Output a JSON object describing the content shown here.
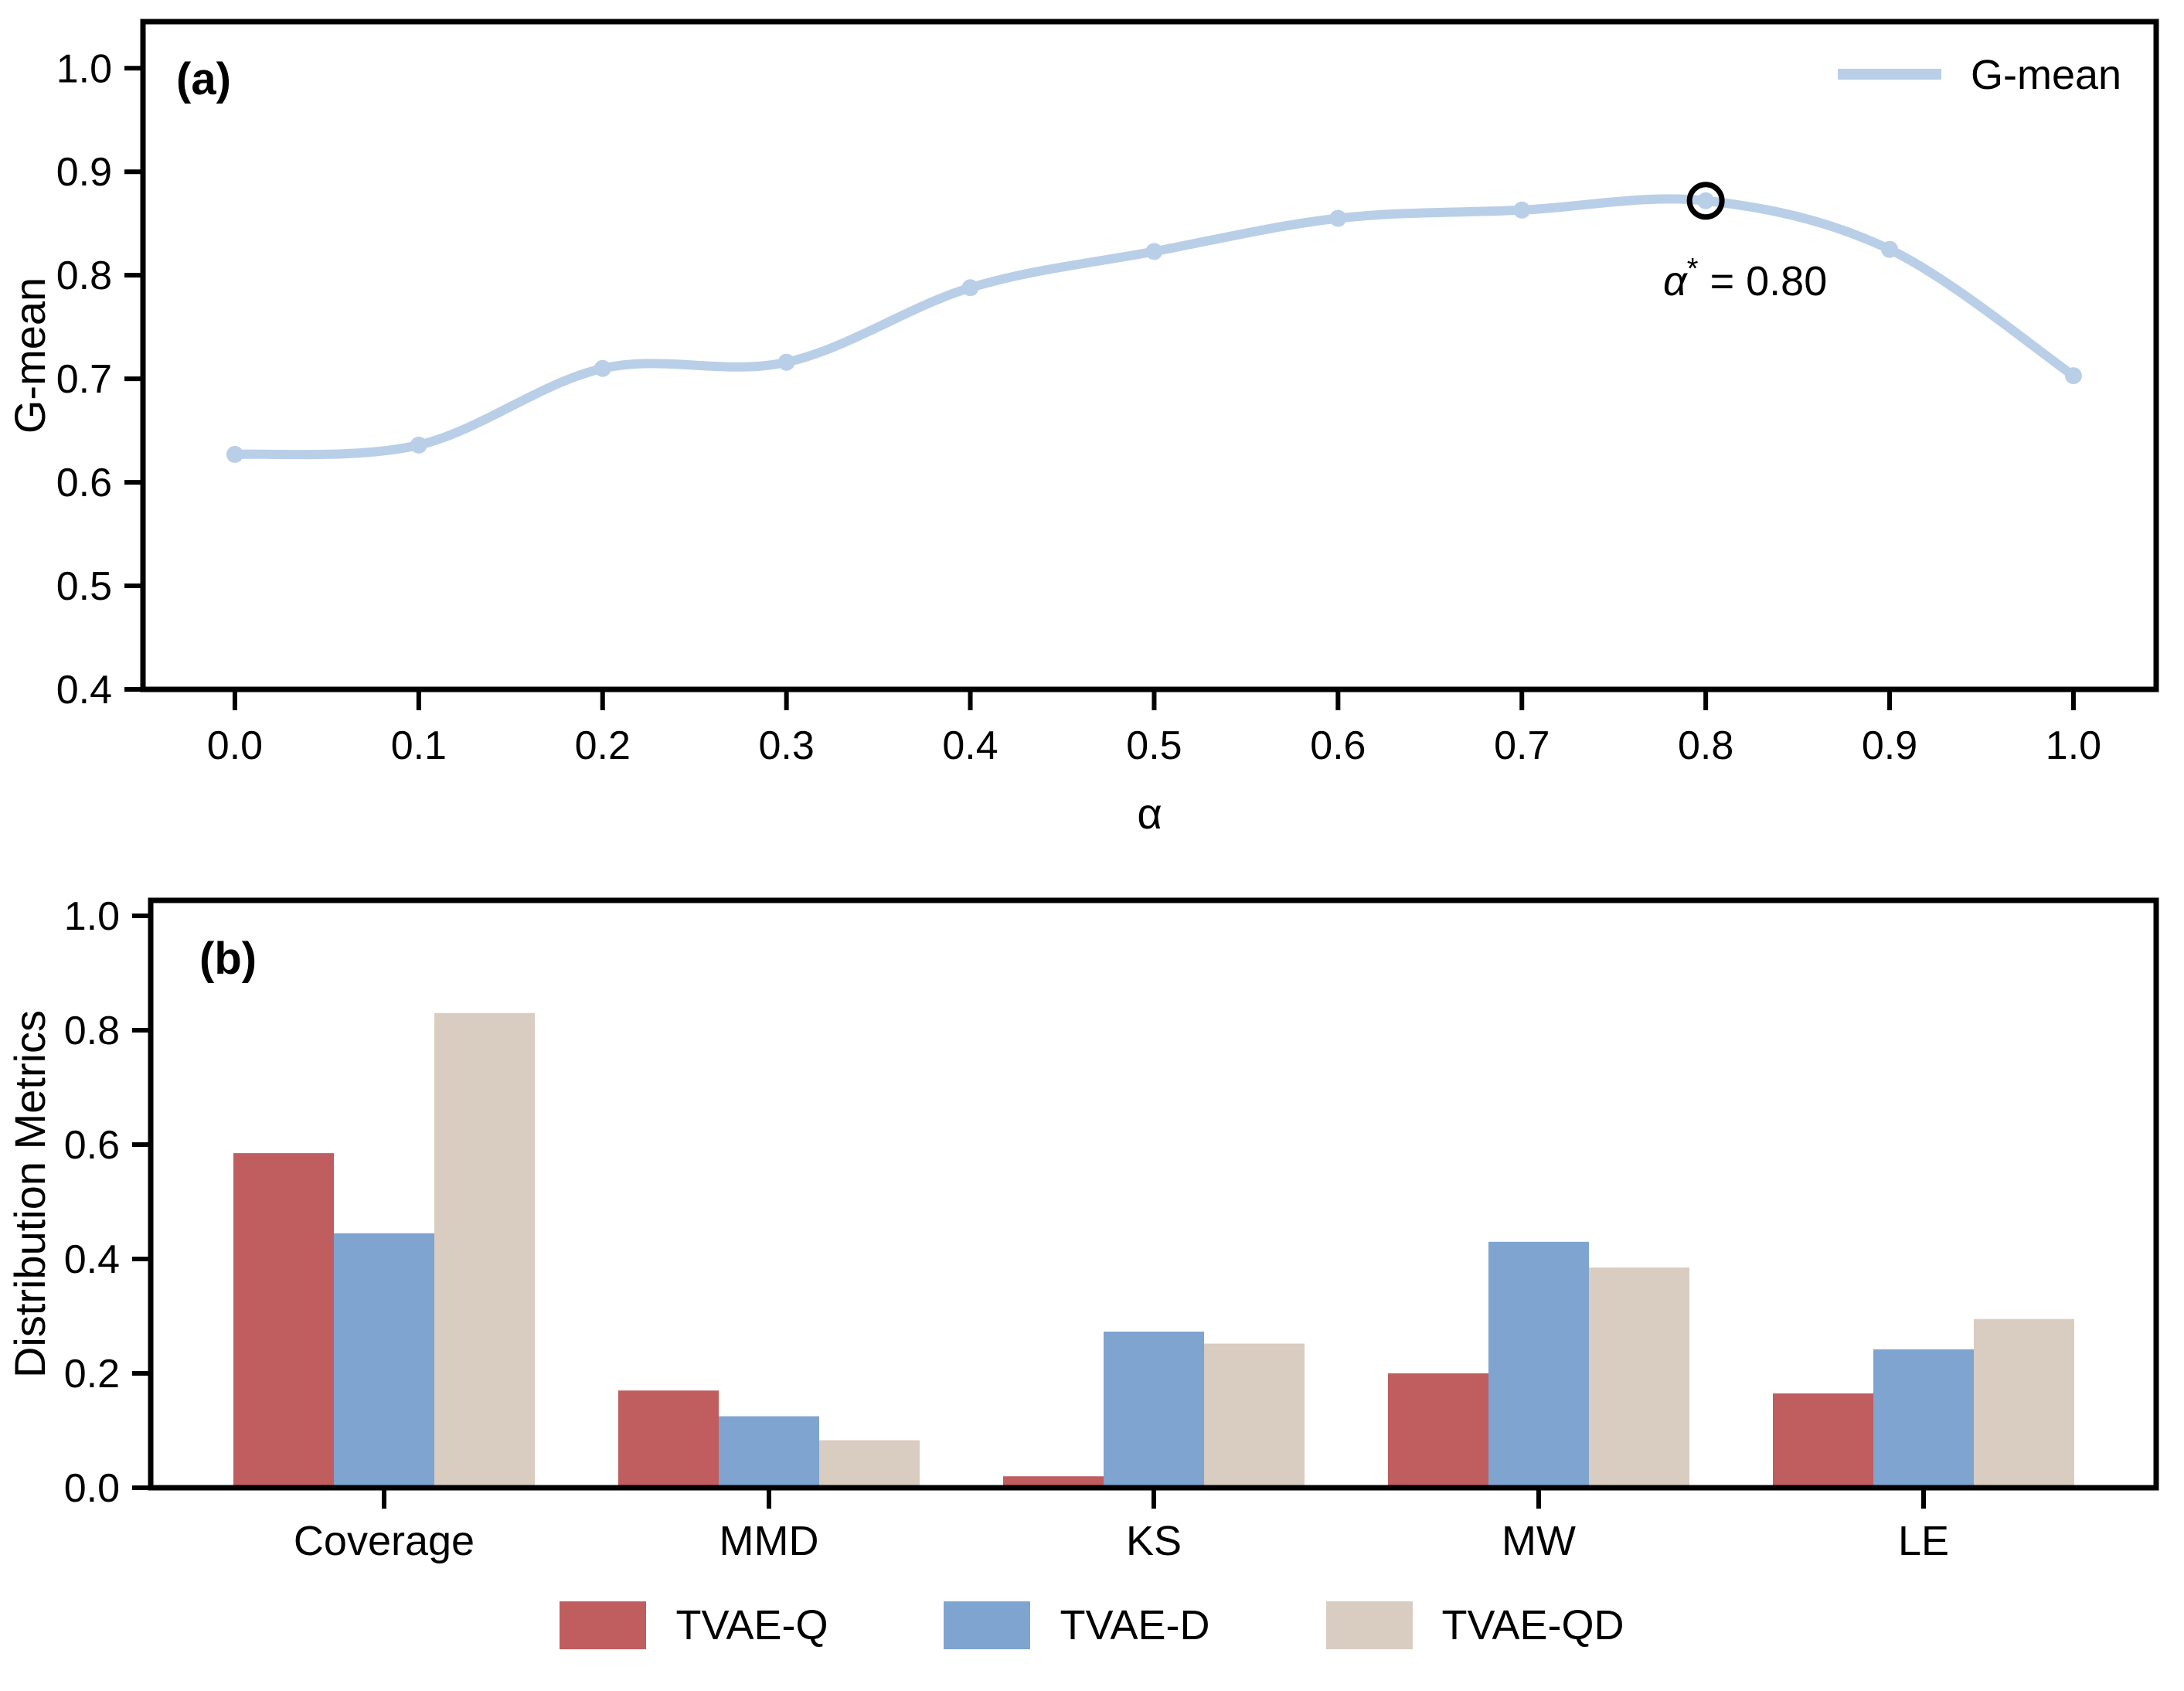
{
  "figure": {
    "background": "#ffffff",
    "text_color": "#000000",
    "spine_color": "#000000"
  },
  "panels": {
    "a": {
      "tag": "(a)",
      "xlabel": "α",
      "ylabel": "G-mean",
      "legend_label": "G-mean",
      "annotation": {
        "symbol": "α",
        "sup": "*",
        "rest": " = 0.80",
        "full_text": "α* = 0.80"
      }
    },
    "b": {
      "tag": "(b)",
      "ylabel": "Distribution Metrics"
    }
  },
  "chart_data": [
    {
      "type": "line",
      "panel": "a",
      "title": "",
      "xlabel": "α",
      "ylabel": "G-mean",
      "x": [
        0.0,
        0.1,
        0.2,
        0.3,
        0.4,
        0.5,
        0.6,
        0.7,
        0.8,
        0.9,
        1.0
      ],
      "series": [
        {
          "name": "G-mean",
          "color": "#b9cfe8",
          "values": [
            0.627,
            0.636,
            0.71,
            0.716,
            0.788,
            0.823,
            0.855,
            0.863,
            0.872,
            0.825,
            0.703
          ]
        }
      ],
      "xticks": [
        0.0,
        0.1,
        0.2,
        0.3,
        0.4,
        0.5,
        0.6,
        0.7,
        0.8,
        0.9,
        1.0
      ],
      "yticks": [
        0.4,
        0.5,
        0.6,
        0.7,
        0.8,
        0.9,
        1.0
      ],
      "xlim": [
        -0.05,
        1.045
      ],
      "ylim": [
        0.4,
        1.045
      ],
      "grid": false,
      "legend_position": "upper right",
      "highlight_point": {
        "x": 0.8,
        "y": 0.872,
        "label": "α* = 0.80"
      }
    },
    {
      "type": "bar",
      "panel": "b",
      "title": "",
      "xlabel": "",
      "ylabel": "Distribution Metrics",
      "categories": [
        "Coverage",
        "MMD",
        "KS",
        "MW",
        "LE"
      ],
      "series": [
        {
          "name": "TVAE-Q",
          "color": "#c05d5e",
          "values": [
            0.585,
            0.17,
            0.02,
            0.2,
            0.165
          ]
        },
        {
          "name": "TVAE-D",
          "color": "#7fa4cf",
          "values": [
            0.445,
            0.125,
            0.273,
            0.43,
            0.242
          ]
        },
        {
          "name": "TVAE-QD",
          "color": "#d9ccc0",
          "values": [
            0.83,
            0.083,
            0.252,
            0.385,
            0.295
          ]
        }
      ],
      "yticks": [
        0.0,
        0.2,
        0.4,
        0.6,
        0.8,
        1.0
      ],
      "ylim": [
        0.0,
        1.027
      ],
      "grid": false,
      "legend_position": "bottom"
    }
  ]
}
